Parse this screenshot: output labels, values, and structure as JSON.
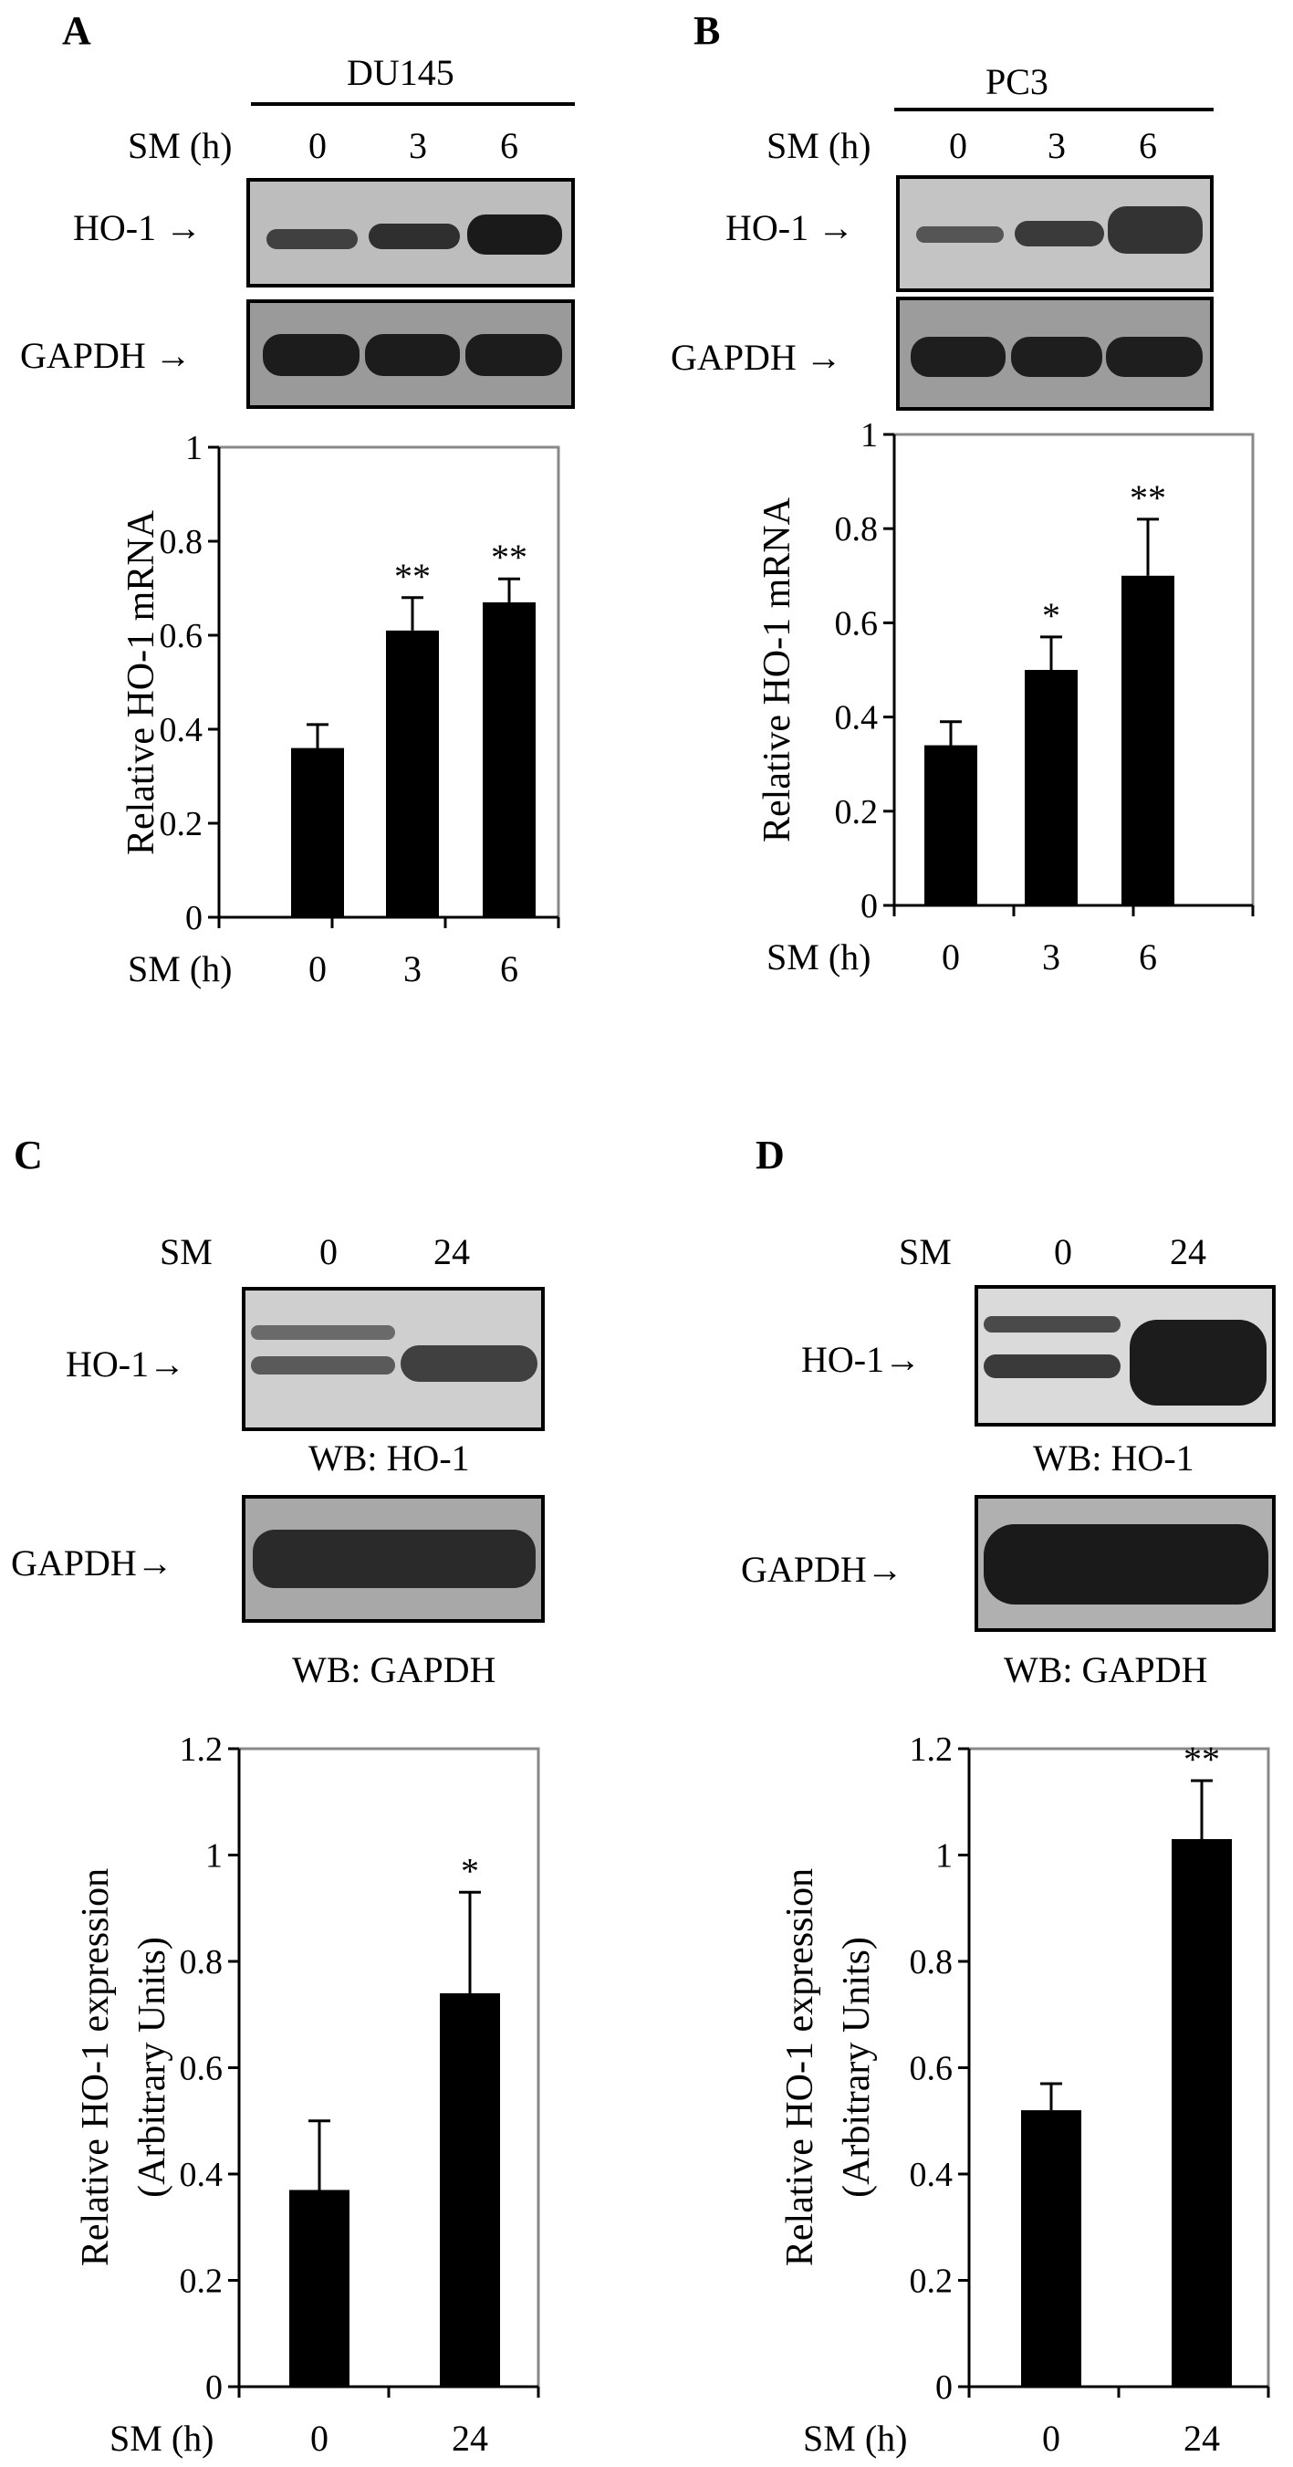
{
  "panels": {
    "A": {
      "label": "A",
      "cell_line": "DU145",
      "gel_row_label": "SM (h)",
      "lanes": [
        "0",
        "3",
        "6"
      ],
      "band_labels": [
        "HO-1",
        "GAPDH"
      ]
    },
    "B": {
      "label": "B",
      "cell_line": "PC3",
      "gel_row_label": "SM (h)",
      "lanes": [
        "0",
        "3",
        "6"
      ],
      "band_labels": [
        "HO-1",
        "GAPDH"
      ]
    },
    "C": {
      "label": "C",
      "gel_row_label": "SM",
      "lanes": [
        "0",
        "24"
      ],
      "band_labels": [
        "HO-1",
        "GAPDH"
      ],
      "wb_labels": [
        "WB: HO-1",
        "WB: GAPDH"
      ]
    },
    "D": {
      "label": "D",
      "gel_row_label": "SM",
      "lanes": [
        "0",
        "24"
      ],
      "band_labels": [
        "HO-1",
        "GAPDH"
      ],
      "wb_labels": [
        "WB: HO-1",
        "WB: GAPDH"
      ]
    }
  },
  "chart_data": [
    {
      "panel": "A",
      "type": "bar",
      "xlabel": "SM (h)",
      "ylabel": "Relative HO-1 mRNA",
      "categories": [
        "0",
        "3",
        "6"
      ],
      "values": [
        0.36,
        0.61,
        0.67
      ],
      "errors": [
        0.05,
        0.07,
        0.05
      ],
      "annotations": [
        "",
        "**",
        "**"
      ],
      "ylim": [
        0,
        1
      ],
      "yticks": [
        "0",
        "0.2",
        "0.4",
        "0.6",
        "0.8",
        "1"
      ]
    },
    {
      "panel": "B",
      "type": "bar",
      "xlabel": "SM (h)",
      "ylabel": "Relative HO-1 mRNA",
      "categories": [
        "0",
        "3",
        "6"
      ],
      "values": [
        0.34,
        0.5,
        0.7
      ],
      "errors": [
        0.05,
        0.07,
        0.12
      ],
      "annotations": [
        "",
        "*",
        "**"
      ],
      "ylim": [
        0,
        1
      ],
      "yticks": [
        "0",
        "0.2",
        "0.4",
        "0.6",
        "0.8",
        "1"
      ]
    },
    {
      "panel": "C",
      "type": "bar",
      "xlabel": "SM (h)",
      "ylabel": "Relative  HO-1 expression",
      "ylabel2": "(Arbitrary Units)",
      "categories": [
        "0",
        "24"
      ],
      "values": [
        0.37,
        0.74
      ],
      "errors": [
        0.13,
        0.19
      ],
      "annotations": [
        "",
        "*"
      ],
      "ylim": [
        0,
        1.2
      ],
      "yticks": [
        "0",
        "0.2",
        "0.4",
        "0.6",
        "0.8",
        "1",
        "1.2"
      ]
    },
    {
      "panel": "D",
      "type": "bar",
      "xlabel": "SM (h)",
      "ylabel": "Relative  HO-1 expression",
      "ylabel2": "(Arbitrary Units)",
      "categories": [
        "0",
        "24"
      ],
      "values": [
        0.52,
        1.03
      ],
      "errors": [
        0.05,
        0.11
      ],
      "annotations": [
        "",
        "**"
      ],
      "ylim": [
        0,
        1.2
      ],
      "yticks": [
        "0",
        "0.2",
        "0.4",
        "0.6",
        "0.8",
        "1",
        "1.2"
      ]
    }
  ]
}
